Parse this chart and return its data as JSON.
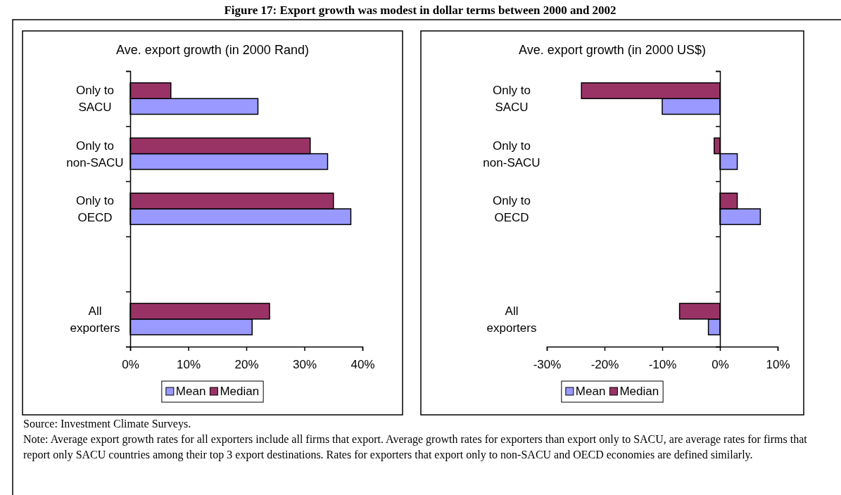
{
  "chart_data": [
    {
      "type": "bar",
      "orientation": "horizontal",
      "title": "Ave. export growth (in 2000 Rand)",
      "categories": [
        "Only to SACU",
        "Only to non-SACU",
        "Only to OECD",
        null,
        "All exporters"
      ],
      "series": [
        {
          "name": "Mean",
          "color": "#9999ff",
          "values": [
            22,
            34,
            38,
            null,
            21
          ]
        },
        {
          "name": "Median",
          "color": "#993366",
          "values": [
            7,
            31,
            35,
            null,
            24
          ]
        }
      ],
      "xlim": [
        0,
        40
      ],
      "xticks": [
        {
          "value": 0,
          "label": "0%"
        },
        {
          "value": 10,
          "label": "10%"
        },
        {
          "value": 20,
          "label": "20%"
        },
        {
          "value": 30,
          "label": "30%"
        },
        {
          "value": 40,
          "label": "40%"
        }
      ],
      "legend": "bottom",
      "grid": false,
      "annotations": [
        "Figure 17: Export growth was modest in dollar terms between 2000 and 2002",
        "Source: Investment Climate Surveys.",
        "Note:  Average export growth rates for all exporters include all firms that export.  Average growth rates for exporters than export only to SACU, are average rates for firms that report only SACU countries among their top 3 export destinations.  Rates for exporters that export only to non-SACU and OECD economies are defined similarly."
      ]
    },
    {
      "type": "bar",
      "orientation": "horizontal",
      "title": "Ave. export growth (in 2000 US$)",
      "categories": [
        "Only to SACU",
        "Only to non-SACU",
        "Only to OECD",
        null,
        "All exporters"
      ],
      "series": [
        {
          "name": "Mean",
          "color": "#9999ff",
          "values": [
            -10,
            3,
            7,
            null,
            -2
          ]
        },
        {
          "name": "Median",
          "color": "#993366",
          "values": [
            -24,
            -1,
            3,
            null,
            -7
          ]
        }
      ],
      "xlim": [
        -30,
        10
      ],
      "xticks": [
        {
          "value": -30,
          "label": "-30%"
        },
        {
          "value": -20,
          "label": "-20%"
        },
        {
          "value": -10,
          "label": "-10%"
        },
        {
          "value": 0,
          "label": "0%"
        },
        {
          "value": 10,
          "label": "10%"
        }
      ],
      "legend": "bottom",
      "grid": false
    }
  ]
}
